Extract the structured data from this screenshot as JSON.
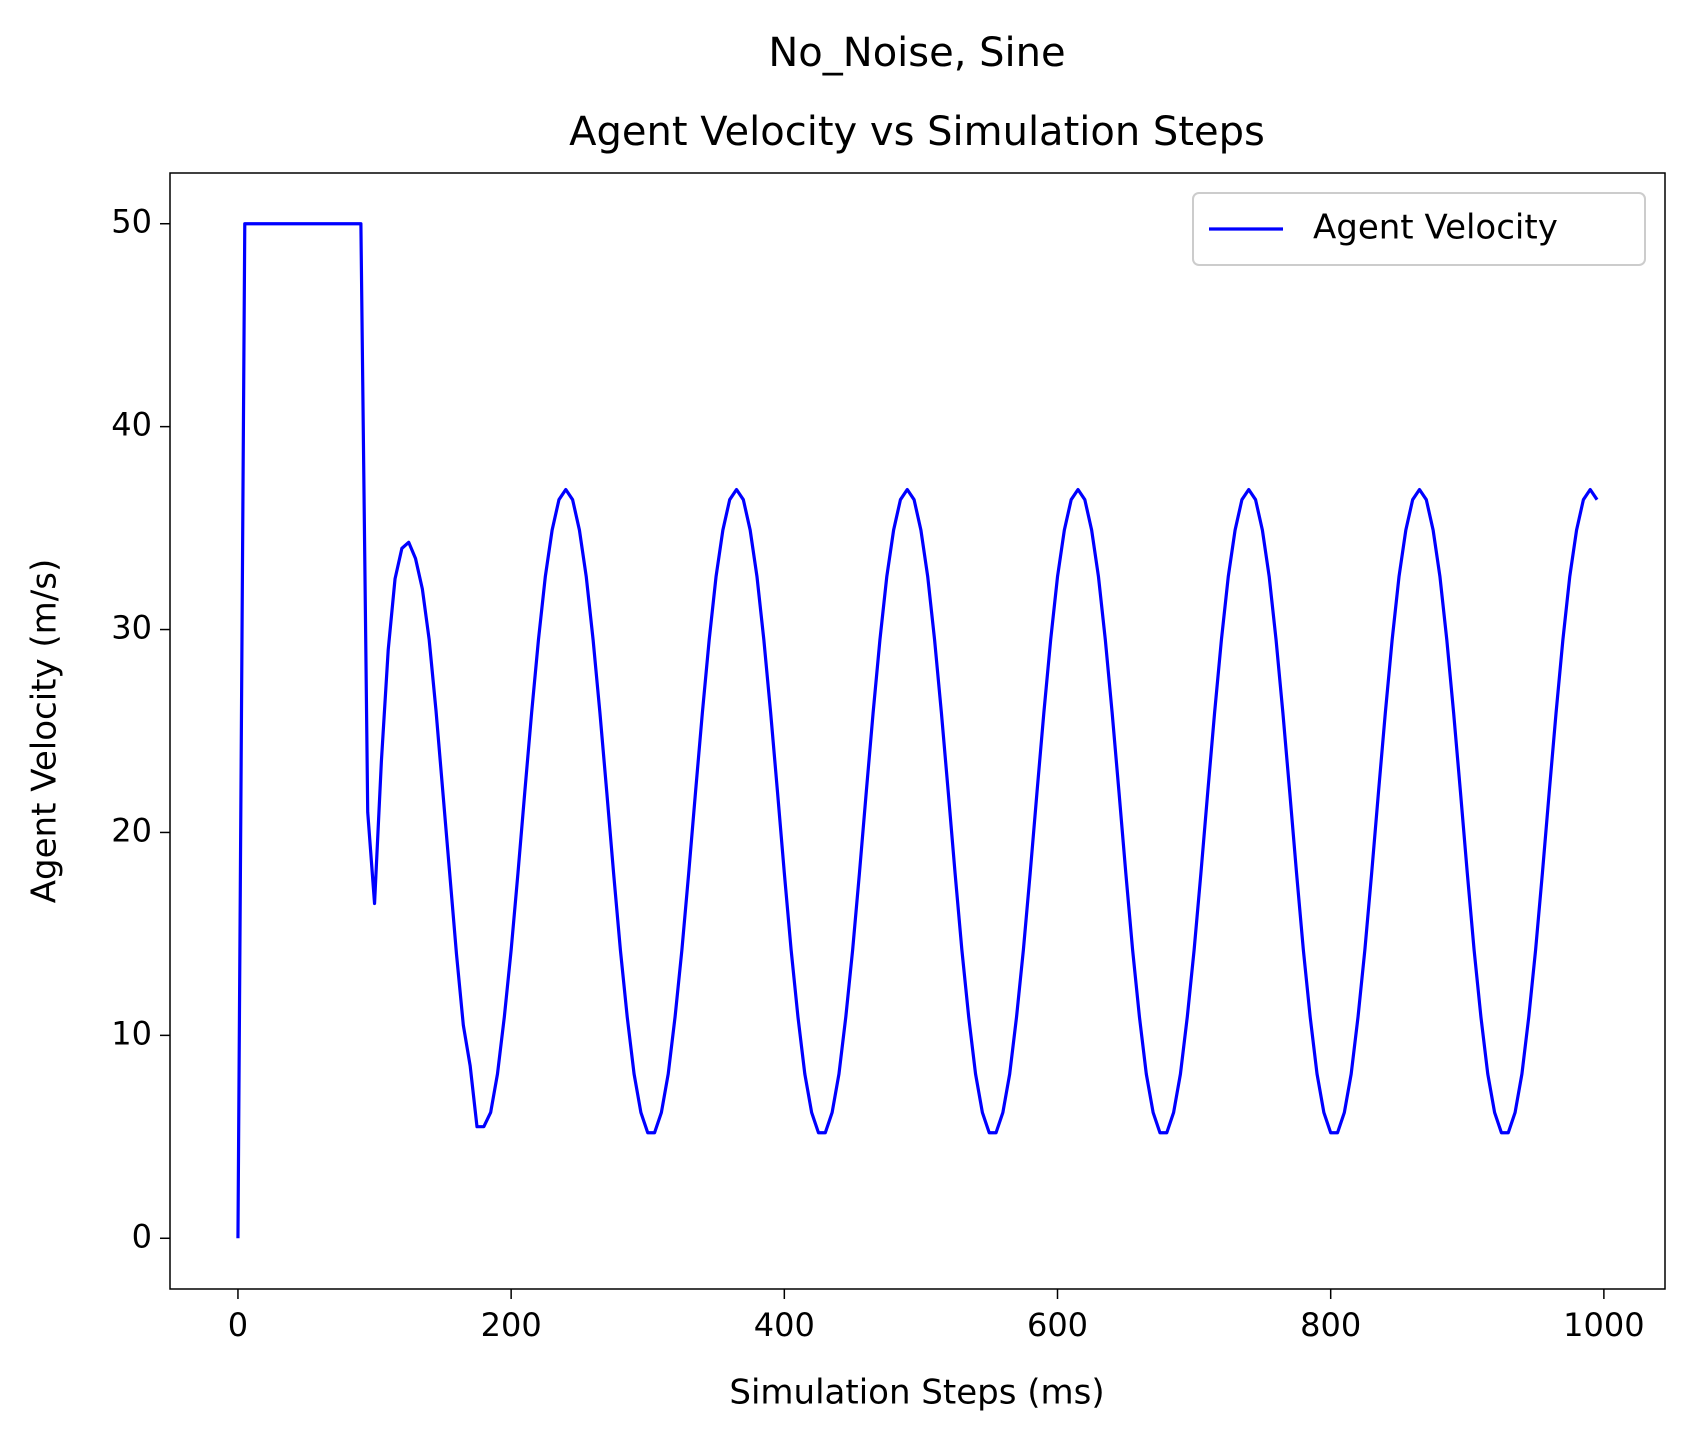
{
  "chart_data": {
    "type": "line",
    "suptitle": "No_Noise, Sine",
    "title": "Agent Velocity vs Simulation Steps",
    "xlabel": "Simulation Steps (ms)",
    "ylabel": "Agent Velocity (m/s)",
    "x": [
      0,
      5,
      10,
      15,
      20,
      25,
      30,
      35,
      40,
      45,
      50,
      55,
      60,
      65,
      70,
      75,
      80,
      85,
      90,
      95,
      100,
      105,
      110,
      115,
      120,
      125,
      130,
      135,
      140,
      145,
      150,
      155,
      160,
      165,
      170,
      175,
      180,
      185,
      190,
      195,
      200,
      205,
      210,
      215,
      220,
      225,
      230,
      235,
      240,
      245,
      250,
      255,
      260,
      265,
      270,
      275,
      280,
      285,
      290,
      295,
      300,
      305,
      310,
      315,
      320,
      325,
      330,
      335,
      340,
      345,
      350,
      355,
      360,
      365,
      370,
      375,
      380,
      385,
      390,
      395,
      400,
      405,
      410,
      415,
      420,
      425,
      430,
      435,
      440,
      445,
      450,
      455,
      460,
      465,
      470,
      475,
      480,
      485,
      490,
      495,
      500,
      505,
      510,
      515,
      520,
      525,
      530,
      535,
      540,
      545,
      550,
      555,
      560,
      565,
      570,
      575,
      580,
      585,
      590,
      595,
      600,
      605,
      610,
      615,
      620,
      625,
      630,
      635,
      640,
      645,
      650,
      655,
      660,
      665,
      670,
      675,
      680,
      685,
      690,
      695,
      700,
      705,
      710,
      715,
      720,
      725,
      730,
      735,
      740,
      745,
      750,
      755,
      760,
      765,
      770,
      775,
      780,
      785,
      790,
      795,
      800,
      805,
      810,
      815,
      820,
      825,
      830,
      835,
      840,
      845,
      850,
      855,
      860,
      865,
      870,
      875,
      880,
      885,
      890,
      895,
      900,
      905,
      910,
      915,
      920,
      925,
      930,
      935,
      940,
      945,
      950,
      955,
      960,
      965,
      970,
      975,
      980,
      985,
      990,
      995
    ],
    "series": [
      {
        "name": "Agent Velocity",
        "color": "#0000ff",
        "values": [
          0,
          50,
          50,
          50,
          50,
          50,
          50,
          50,
          50,
          50,
          50,
          50,
          50,
          50,
          50,
          50,
          50,
          50,
          50,
          21,
          16.5,
          23.5,
          29,
          32.5,
          34,
          34.3,
          33.5,
          32,
          29.5,
          26,
          22,
          18,
          14,
          10.5,
          8.5,
          5.5,
          5.5,
          6.2,
          8.1,
          10.9,
          14.2,
          18.0,
          22.0,
          25.9,
          29.5,
          32.6,
          34.9,
          36.4,
          36.9,
          36.4,
          34.9,
          32.6,
          29.5,
          25.9,
          22.0,
          18.0,
          14.2,
          10.9,
          8.1,
          6.2,
          5.2,
          5.2,
          6.2,
          8.1,
          10.9,
          14.2,
          18.0,
          22.0,
          25.9,
          29.5,
          32.6,
          34.9,
          36.4,
          36.9,
          36.4,
          34.9,
          32.6,
          29.5,
          25.9,
          22.0,
          18.0,
          14.2,
          10.9,
          8.1,
          6.2,
          5.2,
          5.2,
          6.2,
          8.1,
          10.9,
          14.2,
          18.0,
          22.0,
          25.9,
          29.5,
          32.6,
          34.9,
          36.4,
          36.9,
          36.4,
          34.9,
          32.6,
          29.5,
          25.9,
          22.0,
          18.0,
          14.2,
          10.9,
          8.1,
          6.2,
          5.2,
          5.2,
          6.2,
          8.1,
          10.9,
          14.2,
          18.0,
          22.0,
          25.9,
          29.5,
          32.6,
          34.9,
          36.4,
          36.9,
          36.4,
          34.9,
          32.6,
          29.5,
          25.9,
          22.0,
          18.0,
          14.2,
          10.9,
          8.1,
          6.2,
          5.2,
          5.2,
          6.2,
          8.1,
          10.9,
          14.2,
          18.0,
          22.0,
          25.9,
          29.5,
          32.6,
          34.9,
          36.4,
          36.9,
          36.4,
          34.9,
          32.6,
          29.5,
          25.9,
          22.0,
          18.0,
          14.2,
          10.9,
          8.1,
          6.2,
          5.2,
          5.2,
          6.2,
          8.1,
          10.9,
          14.2,
          18.0,
          22.0,
          25.9,
          29.5,
          32.6,
          34.9,
          36.4,
          36.9,
          36.4,
          34.9,
          32.6,
          29.5,
          25.9,
          22.0,
          18.0,
          14.2,
          10.9,
          8.1,
          6.2,
          5.2,
          5.2,
          6.2,
          8.1,
          10.9,
          14.2,
          18.0,
          22.0,
          25.9,
          29.5,
          32.6,
          34.9,
          36.4,
          36.9,
          36.4
        ]
      }
    ],
    "xlim": [
      -49.75,
      1044.75
    ],
    "xticks": [
      0,
      200,
      400,
      600,
      800,
      1000
    ],
    "ylim": [
      -2.5,
      52.5
    ],
    "yticks": [
      0,
      10,
      20,
      30,
      40,
      50
    ],
    "grid": false,
    "legend": "upper right"
  }
}
